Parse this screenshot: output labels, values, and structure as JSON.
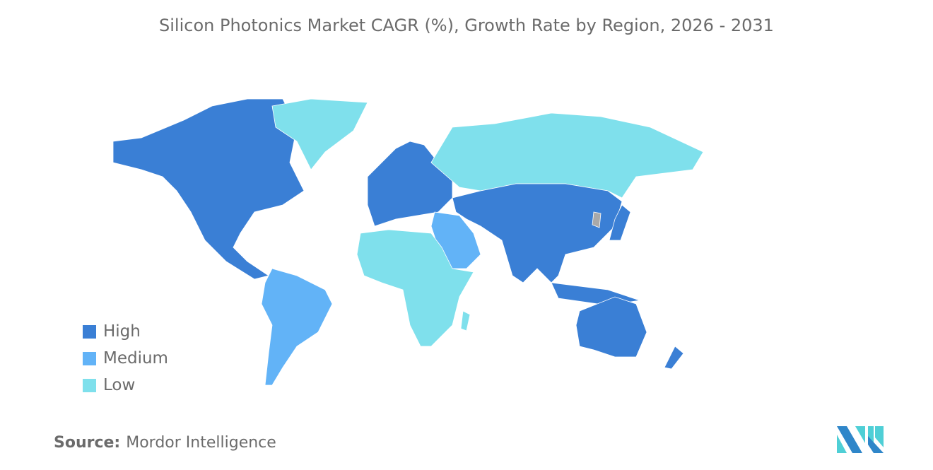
{
  "title": "Silicon Photonics Market CAGR (%), Growth Rate by Region, 2026 - 2031",
  "colors": {
    "High": "#3a7fd5",
    "Medium": "#62b3f7",
    "Low": "#7fe0ec",
    "NoData": "#a9a9a9"
  },
  "legend": [
    {
      "label": "High",
      "level": "High"
    },
    {
      "label": "Medium",
      "level": "Medium"
    },
    {
      "label": "Low",
      "level": "Low"
    }
  ],
  "regions": [
    {
      "name": "North America",
      "level": "High"
    },
    {
      "name": "Greenland",
      "level": "Low"
    },
    {
      "name": "South America",
      "level": "Medium"
    },
    {
      "name": "Europe",
      "level": "High"
    },
    {
      "name": "Russia",
      "level": "Low"
    },
    {
      "name": "Asia",
      "level": "High"
    },
    {
      "name": "Middle East",
      "level": "Medium"
    },
    {
      "name": "Africa",
      "level": "Low"
    },
    {
      "name": "Japan",
      "level": "High"
    },
    {
      "name": "Southeast Asia Islands",
      "level": "High"
    },
    {
      "name": "Australia",
      "level": "High"
    },
    {
      "name": "New Zealand",
      "level": "High"
    },
    {
      "name": "Madagascar",
      "level": "Low"
    },
    {
      "name": "Korea",
      "level": "NoData"
    }
  ],
  "source": {
    "label": "Source:",
    "value": "Mordor Intelligence"
  }
}
